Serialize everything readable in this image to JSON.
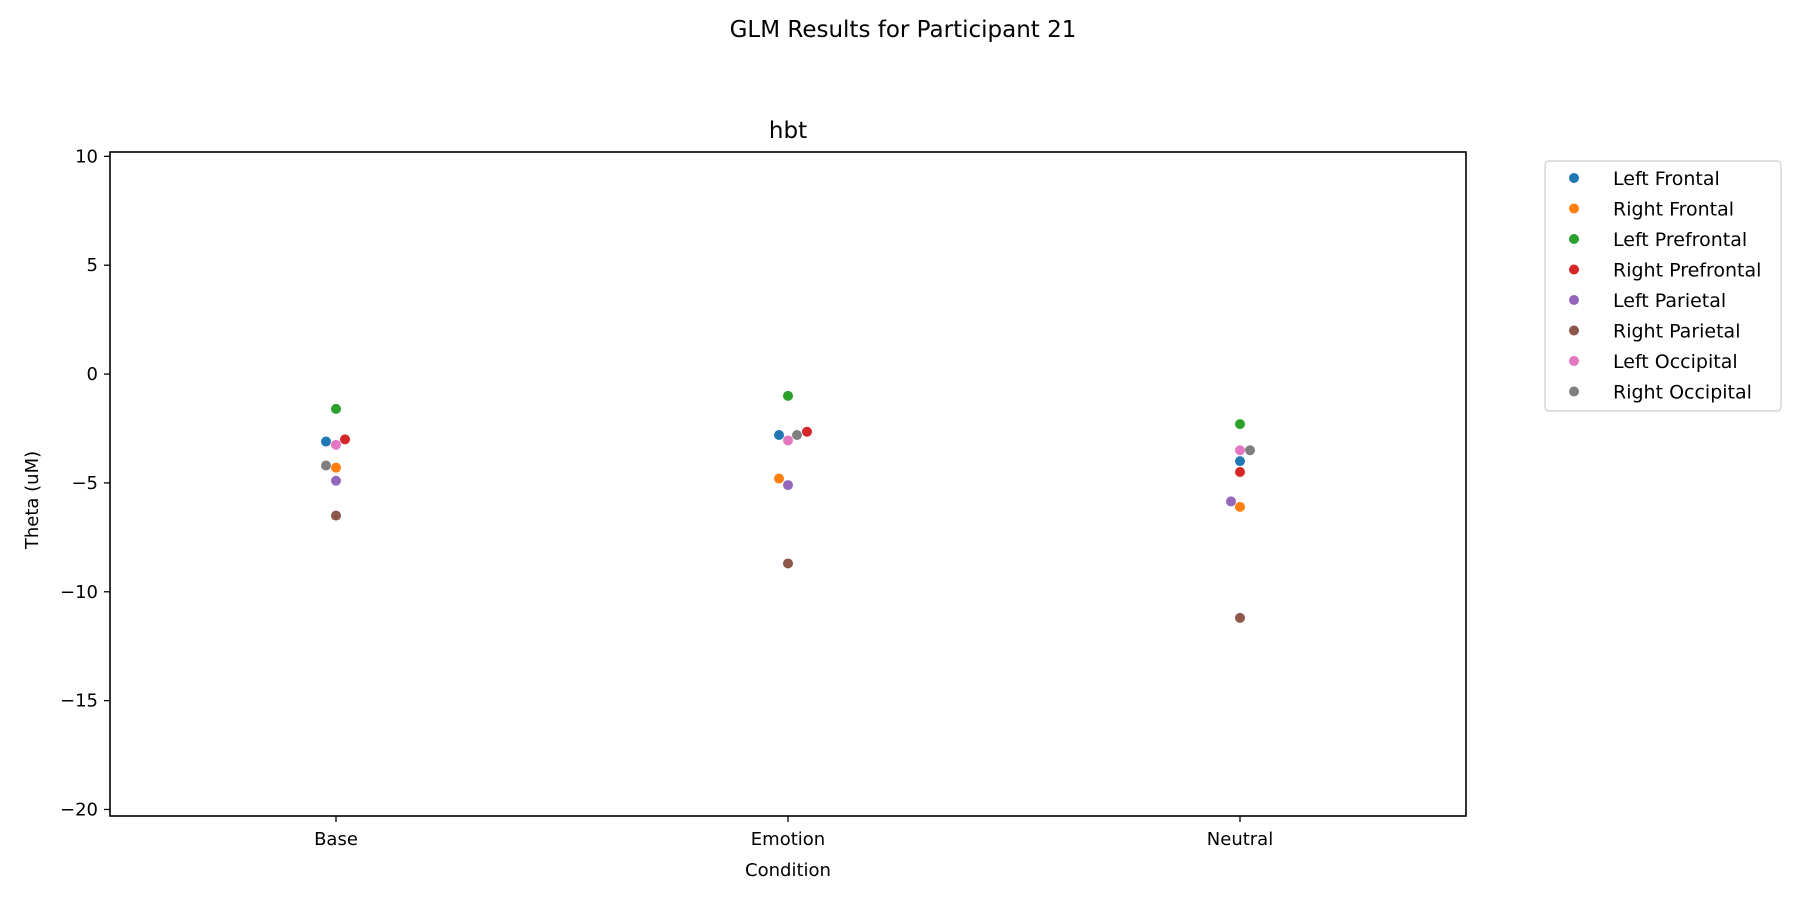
{
  "chart_data": {
    "type": "scatter",
    "suptitle": "GLM Results for Participant 21",
    "title": "hbt",
    "xlabel": "Condition",
    "ylabel": "Theta (uM)",
    "categories": [
      "Base",
      "Emotion",
      "Neutral"
    ],
    "ylim": [
      -20.3,
      10.2
    ],
    "yticks": [
      10,
      5,
      0,
      -5,
      -10,
      -15,
      -20
    ],
    "ytick_labels": [
      "10",
      "5",
      "0",
      "−5",
      "−10",
      "−15",
      "−20"
    ],
    "grid": false,
    "legend_position": "outside-right",
    "series": [
      {
        "name": "Left Frontal",
        "color": "#1f77b4",
        "values": [
          -3.1,
          -2.8,
          -4.0
        ]
      },
      {
        "name": "Right Frontal",
        "color": "#ff7f0e",
        "values": [
          -4.3,
          -4.8,
          -6.1
        ]
      },
      {
        "name": "Left Prefrontal",
        "color": "#2ca02c",
        "values": [
          -1.6,
          -1.0,
          -2.3
        ]
      },
      {
        "name": "Right Prefrontal",
        "color": "#d62728",
        "values": [
          -3.0,
          -2.65,
          -4.5
        ]
      },
      {
        "name": "Left Parietal",
        "color": "#9467bd",
        "values": [
          -4.9,
          -5.1,
          -5.85
        ]
      },
      {
        "name": "Right Parietal",
        "color": "#8c564b",
        "values": [
          -6.5,
          -8.7,
          -11.2
        ]
      },
      {
        "name": "Left Occipital",
        "color": "#e377c2",
        "values": [
          -3.25,
          -3.05,
          -3.5
        ]
      },
      {
        "name": "Right Occipital",
        "color": "#7f7f7f",
        "values": [
          -4.2,
          -2.8,
          -3.5
        ]
      }
    ]
  }
}
